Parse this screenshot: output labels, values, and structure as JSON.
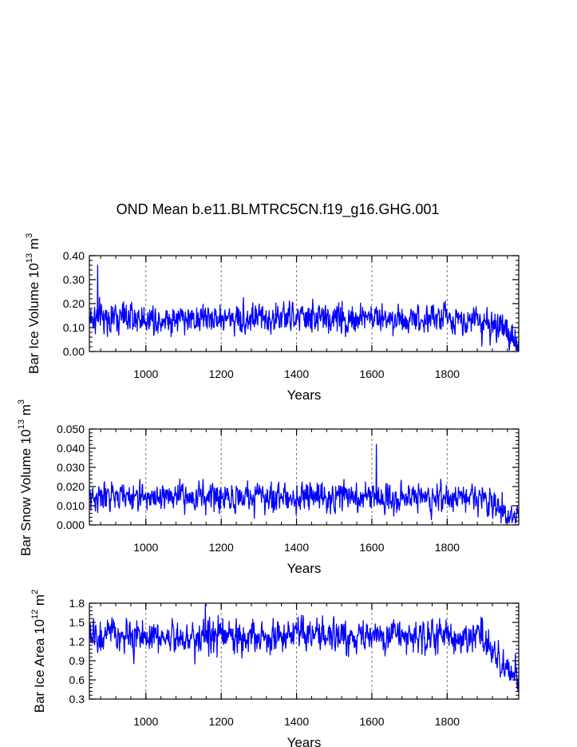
{
  "title": "OND Mean b.e11.BLMTRC5CN.f19_g16.GHG.001",
  "colors": {
    "series": "#0000ff",
    "axis": "#000000",
    "grid": "#777777"
  },
  "chart_data": [
    {
      "type": "line",
      "series": [
        {
          "values_source": "annual values 850-1990"
        }
      ],
      "xlabel": "Years",
      "ylabel_parts": [
        "Bar Ice Volume 10",
        "13",
        " m",
        "3"
      ],
      "xlim": [
        850,
        1990
      ],
      "xticks": [
        1000,
        1200,
        1400,
        1600,
        1800
      ],
      "xtick_labels": [
        "1000",
        "1200",
        "1400",
        "1600",
        "1800"
      ],
      "ylim": [
        0,
        0.4
      ],
      "yticks": [
        0,
        0.1,
        0.2,
        0.3,
        0.4
      ],
      "ytick_labels": [
        "0.00",
        "0.10",
        "0.20",
        "0.30",
        "0.40"
      ],
      "grid": "dashed vertical at x ticks",
      "x_start": 850,
      "y_mean": 0.14,
      "y_std": 0.042,
      "y_trend_end": 0.035,
      "y_min_clip": 0.005,
      "y_peak": 0.36,
      "y_peak_year": 872
    },
    {
      "type": "line",
      "xlabel": "Years",
      "ylabel_parts": [
        "Bar Snow Volume 10",
        "13",
        " m",
        "3"
      ],
      "xlim": [
        850,
        1990
      ],
      "xticks": [
        1000,
        1200,
        1400,
        1600,
        1800
      ],
      "xtick_labels": [
        "1000",
        "1200",
        "1400",
        "1600",
        "1800"
      ],
      "ylim": [
        0,
        0.05
      ],
      "yticks": [
        0,
        0.01,
        0.02,
        0.03,
        0.04,
        0.05
      ],
      "ytick_labels": [
        "0.000",
        "0.010",
        "0.020",
        "0.030",
        "0.040",
        "0.050"
      ],
      "grid": "dashed vertical at x ticks",
      "x_start": 850,
      "y_mean": 0.0145,
      "y_std": 0.0048,
      "y_trend_end": 0.004,
      "y_min_clip": 0.0008,
      "y_peak": 0.042,
      "y_peak_year": 1612
    },
    {
      "type": "line",
      "xlabel": "Years",
      "ylabel_parts": [
        "Bar Ice Area 10",
        "12",
        " m",
        "2"
      ],
      "xlim": [
        850,
        1990
      ],
      "xticks": [
        1000,
        1200,
        1400,
        1600,
        1800
      ],
      "xtick_labels": [
        "1000",
        "1200",
        "1400",
        "1600",
        "1800"
      ],
      "ylim": [
        0.3,
        1.8
      ],
      "yticks": [
        0.3,
        0.6,
        0.9,
        1.2,
        1.5,
        1.8
      ],
      "ytick_labels": [
        "0.3",
        "0.6",
        "0.9",
        "1.2",
        "1.5",
        "1.8"
      ],
      "grid": "dashed vertical at x ticks",
      "x_start": 850,
      "y_mean": 1.28,
      "y_std": 0.17,
      "y_trend_end": 0.65,
      "y_min_clip": 0.33,
      "y_peak": 1.78,
      "y_peak_year": 1158
    }
  ]
}
